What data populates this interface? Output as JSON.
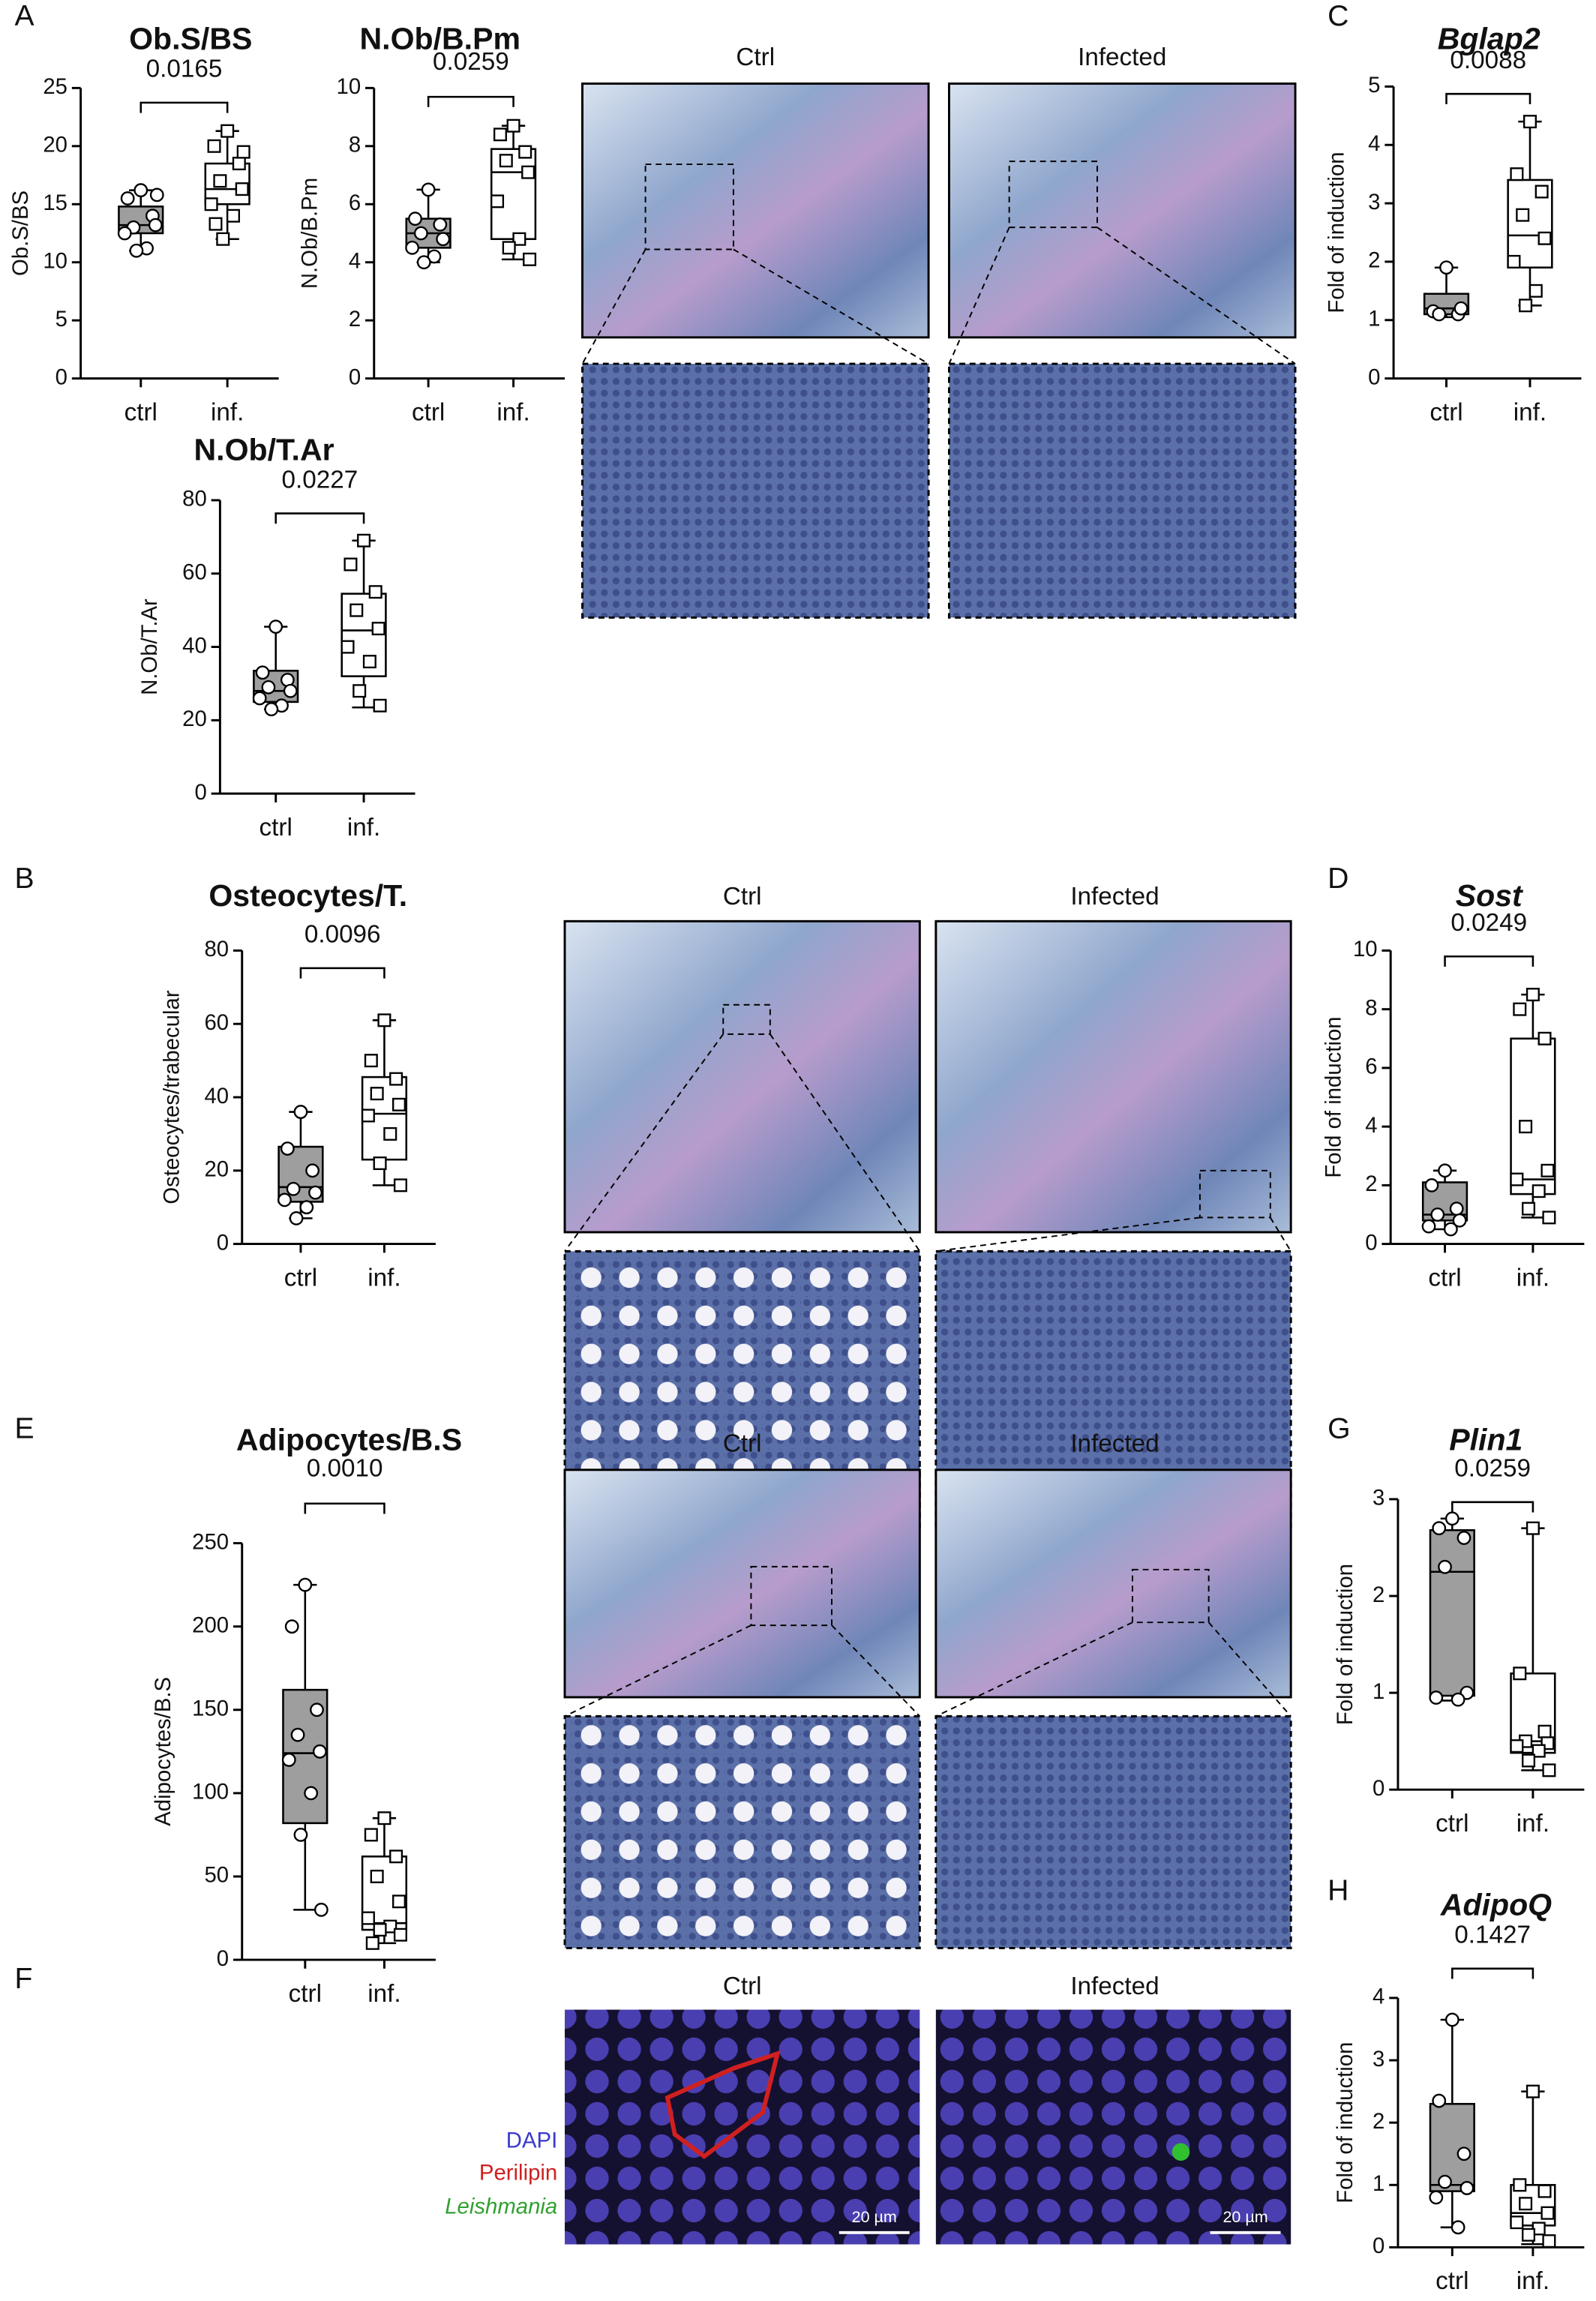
{
  "panel_labels": [
    "A",
    "B",
    "C",
    "D",
    "E",
    "F",
    "G",
    "H"
  ],
  "micrographs": {
    "headers": [
      "Ctrl",
      "Infected"
    ],
    "stain_labels": [
      "DAPI",
      "Perilipin",
      "Leishmania"
    ],
    "scale_bar": "20 µm"
  },
  "chart_data": [
    {
      "type": "box",
      "title": "Ob.S/BS",
      "title_style": "normal",
      "ylabel": "Ob.S/BS",
      "pvalue": "0.0165",
      "categories": [
        "ctrl",
        "inf."
      ],
      "ylim": [
        0,
        25
      ],
      "yticks": [
        0,
        5,
        10,
        15,
        20,
        25
      ],
      "groups": [
        {
          "color": "#9e9e9e",
          "marker": "circle",
          "min": 11,
          "q1": 12.5,
          "median": 13.2,
          "q3": 14.8,
          "max": 16.2,
          "points": [
            16.2,
            15.5,
            14,
            13,
            13.2,
            12.5,
            11.2,
            11,
            15.8
          ]
        },
        {
          "color": "#ffffff",
          "marker": "square",
          "min": 12,
          "q1": 15,
          "median": 16.3,
          "q3": 18.5,
          "max": 21.3,
          "points": [
            21.3,
            20,
            18.5,
            17,
            16.3,
            15,
            14,
            12,
            19.5,
            13.3
          ]
        }
      ]
    },
    {
      "type": "box",
      "title": "N.Ob/B.Pm",
      "title_style": "normal",
      "ylabel": "N.Ob/B.Pm",
      "pvalue": "0.0259",
      "categories": [
        "ctrl",
        "inf."
      ],
      "ylim": [
        0,
        10
      ],
      "yticks": [
        0,
        2,
        4,
        6,
        8,
        10
      ],
      "groups": [
        {
          "color": "#9e9e9e",
          "marker": "circle",
          "min": 4,
          "q1": 4.5,
          "median": 5,
          "q3": 5.5,
          "max": 6.5,
          "points": [
            6.5,
            5.5,
            5.3,
            5,
            4.8,
            4.5,
            4.2,
            4
          ]
        },
        {
          "color": "#ffffff",
          "marker": "square",
          "min": 4.1,
          "q1": 4.8,
          "median": 7.1,
          "q3": 7.9,
          "max": 8.7,
          "points": [
            8.7,
            8.4,
            7.8,
            7.5,
            7.1,
            6.1,
            4.8,
            4.5,
            4.1
          ]
        }
      ]
    },
    {
      "type": "box",
      "title": "N.Ob/T.Ar",
      "title_style": "normal",
      "ylabel": "N.Ob/T.Ar",
      "pvalue": "0.0227",
      "categories": [
        "ctrl",
        "inf."
      ],
      "ylim": [
        0,
        80
      ],
      "yticks": [
        0,
        20,
        40,
        60,
        80
      ],
      "groups": [
        {
          "color": "#9e9e9e",
          "marker": "circle",
          "min": 23,
          "q1": 25,
          "median": 28,
          "q3": 33.5,
          "max": 45.5,
          "points": [
            45.5,
            33,
            31,
            29,
            28,
            26,
            24,
            23
          ]
        },
        {
          "color": "#ffffff",
          "marker": "square",
          "min": 23.5,
          "q1": 32,
          "median": 44.5,
          "q3": 54.5,
          "max": 69,
          "points": [
            69,
            62.5,
            55,
            50,
            45,
            40,
            36,
            28,
            24
          ]
        }
      ]
    },
    {
      "type": "box",
      "title": "Bglap2",
      "title_style": "italic",
      "ylabel": "Fold of induction",
      "pvalue": "0.0088",
      "categories": [
        "ctrl",
        "inf."
      ],
      "ylim": [
        0,
        5
      ],
      "yticks": [
        0,
        1,
        2,
        3,
        4,
        5
      ],
      "groups": [
        {
          "color": "#9e9e9e",
          "marker": "circle",
          "min": 1.05,
          "q1": 1.1,
          "median": 1.2,
          "q3": 1.45,
          "max": 1.9,
          "points": [
            1.9,
            1.15,
            1.1,
            1.1,
            1.2
          ]
        },
        {
          "color": "#ffffff",
          "marker": "square",
          "min": 1.25,
          "q1": 1.9,
          "median": 2.45,
          "q3": 3.4,
          "max": 4.4,
          "points": [
            4.4,
            3.5,
            3.2,
            2.8,
            2.4,
            2,
            1.5,
            1.25
          ]
        }
      ]
    },
    {
      "type": "box",
      "title": "Osteocytes/T.",
      "title_style": "normal",
      "ylabel": "Osteocytes/trabecular",
      "pvalue": "0.0096",
      "categories": [
        "ctrl",
        "inf."
      ],
      "ylim": [
        0,
        80
      ],
      "yticks": [
        0,
        20,
        40,
        60,
        80
      ],
      "groups": [
        {
          "color": "#9e9e9e",
          "marker": "circle",
          "min": 7,
          "q1": 11.5,
          "median": 15.5,
          "q3": 26.5,
          "max": 36,
          "points": [
            36,
            26,
            20,
            15,
            14,
            12,
            10,
            7
          ]
        },
        {
          "color": "#ffffff",
          "marker": "square",
          "min": 16,
          "q1": 23,
          "median": 35.5,
          "q3": 45.5,
          "max": 61,
          "points": [
            61,
            50,
            45,
            41,
            38,
            35,
            30,
            22,
            16
          ]
        }
      ]
    },
    {
      "type": "box",
      "title": "Sost",
      "title_style": "italic",
      "ylabel": "Fold of induction",
      "pvalue": "0.0249",
      "categories": [
        "ctrl",
        "inf."
      ],
      "ylim": [
        0,
        10
      ],
      "yticks": [
        0,
        2,
        4,
        6,
        8,
        10
      ],
      "groups": [
        {
          "color": "#9e9e9e",
          "marker": "circle",
          "min": 0.5,
          "q1": 0.8,
          "median": 1,
          "q3": 2.1,
          "max": 2.5,
          "points": [
            2.5,
            2,
            1.2,
            1,
            0.8,
            0.6,
            0.5
          ]
        },
        {
          "color": "#ffffff",
          "marker": "square",
          "min": 0.9,
          "q1": 1.7,
          "median": 2.2,
          "q3": 7,
          "max": 8.5,
          "points": [
            8.5,
            8,
            7,
            4,
            2.5,
            2.2,
            1.8,
            1.2,
            0.9
          ]
        }
      ]
    },
    {
      "type": "box",
      "title": "Adipocytes/B.S",
      "title_style": "normal",
      "ylabel": "Adipocytes/B.S",
      "pvalue": "0.0010",
      "categories": [
        "ctrl",
        "inf."
      ],
      "ylim": [
        0,
        250
      ],
      "yticks": [
        0,
        50,
        100,
        150,
        200,
        250
      ],
      "groups": [
        {
          "color": "#9e9e9e",
          "marker": "circle",
          "min": 30,
          "q1": 82,
          "median": 124,
          "q3": 162,
          "max": 225,
          "points": [
            225,
            200,
            150,
            135,
            125,
            120,
            100,
            75,
            30
          ]
        },
        {
          "color": "#ffffff",
          "marker": "square",
          "min": 10,
          "q1": 18,
          "median": 22,
          "q3": 62,
          "max": 85,
          "points": [
            85,
            75,
            62,
            50,
            35,
            25,
            20,
            18,
            15,
            10
          ]
        }
      ]
    },
    {
      "type": "box",
      "title": "Plin1",
      "title_style": "italic",
      "ylabel": "Fold of induction",
      "pvalue": "0.0259",
      "categories": [
        "ctrl",
        "inf."
      ],
      "ylim": [
        0,
        3
      ],
      "yticks": [
        0,
        1,
        2,
        3
      ],
      "groups": [
        {
          "color": "#9e9e9e",
          "marker": "circle",
          "min": 0.92,
          "q1": 0.97,
          "median": 2.25,
          "q3": 2.68,
          "max": 2.8,
          "points": [
            2.8,
            2.7,
            2.6,
            2.3,
            1,
            0.95,
            0.93
          ]
        },
        {
          "color": "#ffffff",
          "marker": "square",
          "min": 0.2,
          "q1": 0.38,
          "median": 0.5,
          "q3": 1.2,
          "max": 2.7,
          "points": [
            2.7,
            1.2,
            0.6,
            0.5,
            0.48,
            0.45,
            0.4,
            0.3,
            0.2
          ]
        }
      ]
    },
    {
      "type": "box",
      "title": "AdipoQ",
      "title_style": "italic",
      "ylabel": "Fold of induction",
      "pvalue": "0.1427",
      "categories": [
        "ctrl",
        "inf."
      ],
      "ylim": [
        0,
        4
      ],
      "yticks": [
        0,
        1,
        2,
        3,
        4
      ],
      "groups": [
        {
          "color": "#9e9e9e",
          "marker": "circle",
          "min": 0.32,
          "q1": 0.9,
          "median": 1,
          "q3": 2.3,
          "max": 3.65,
          "points": [
            3.65,
            2.35,
            1.5,
            1.05,
            0.95,
            0.8,
            0.32
          ]
        },
        {
          "color": "#ffffff",
          "marker": "square",
          "min": 0.05,
          "q1": 0.35,
          "median": 0.55,
          "q3": 1,
          "max": 2.5,
          "points": [
            2.5,
            1,
            0.9,
            0.7,
            0.55,
            0.4,
            0.3,
            0.2,
            0.1
          ]
        }
      ]
    }
  ]
}
